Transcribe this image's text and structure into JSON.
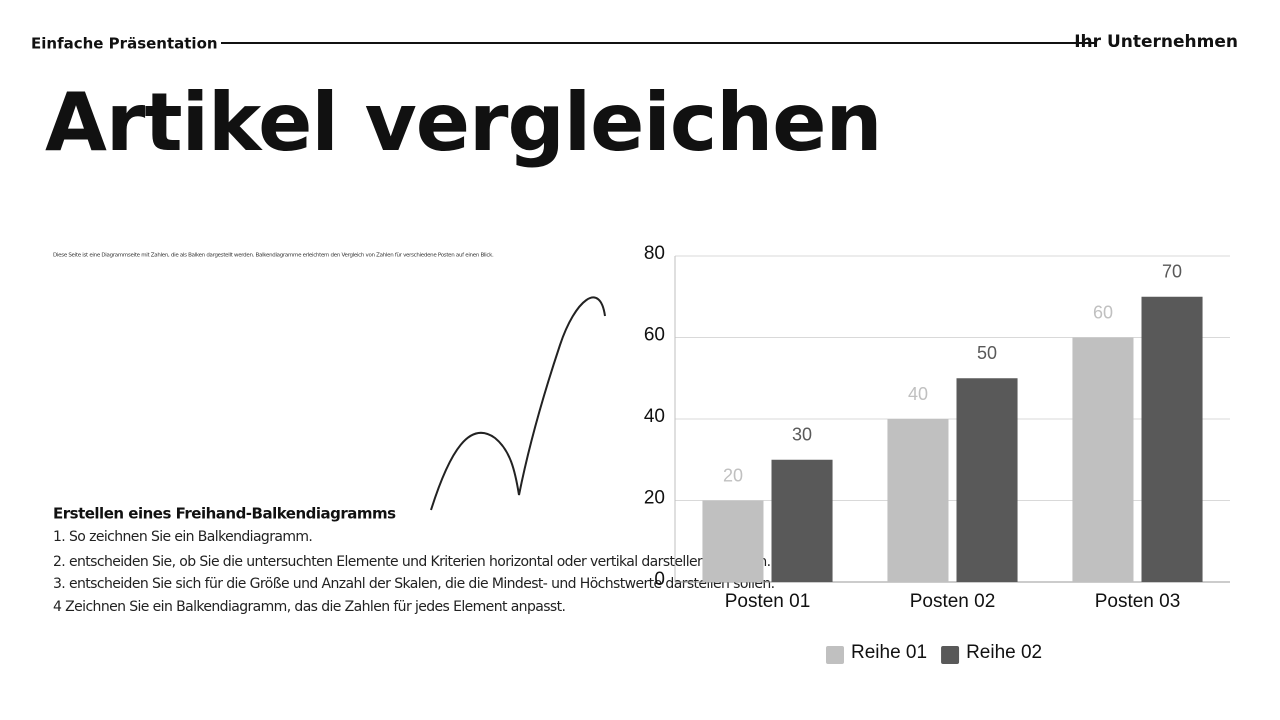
{
  "header": {
    "left": "Einfache Präsentation",
    "right": "Ihr Unternehmen"
  },
  "title": "Artikel vergleichen",
  "description": "Diese Seite ist eine Diagrammseite mit Zahlen, die als Balken dargestellt werden. Balkendiagramme erleichtern den Vergleich von Zahlen für verschiedene Posten auf einen Blick.",
  "steps": {
    "heading": "Erstellen eines Freihand-Balkendiagramms",
    "items": [
      "1. So zeichnen Sie ein Balkendiagramm.",
      "2. entscheiden Sie, ob Sie die untersuchten Elemente und Kriterien horizontal oder vertikal darstellen möchten.",
      "3. entscheiden Sie sich für die Größe und Anzahl der Skalen, die die Mindest- und Höchstwerte darstellen sollen.",
      "4 Zeichnen Sie ein Balkendiagramm, das die Zahlen für jedes Element anpasst."
    ]
  },
  "chart_data": {
    "type": "bar",
    "categories": [
      "Posten 01",
      "Posten 02",
      "Posten 03"
    ],
    "series": [
      {
        "name": "Reihe 01",
        "color": "#c0c0c0",
        "values": [
          20,
          40,
          60
        ]
      },
      {
        "name": "Reihe 02",
        "color": "#595959",
        "values": [
          30,
          50,
          70
        ]
      }
    ],
    "ylim": [
      0,
      80
    ],
    "yticks": [
      0,
      20,
      40,
      60,
      80
    ],
    "grid": true,
    "legend": "bottom"
  }
}
